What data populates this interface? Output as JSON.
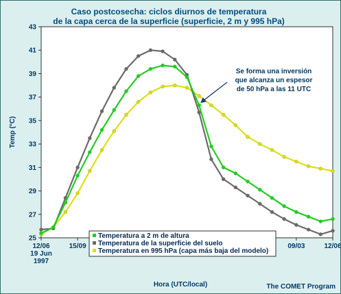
{
  "chart_data": {
    "type": "line",
    "title": "Caso postcosecha: ciclos diurnos de temperatura",
    "subtitle": "de la capa cerca de la superficie (superficie, 2 m y 995 hPa)",
    "xlabel": "Hora (UTC/local)",
    "ylabel": "Temp (°C)",
    "credit": "The COMET Program",
    "ylim": [
      25,
      43
    ],
    "yticks": [
      "25",
      "27",
      "29",
      "31",
      "33",
      "35",
      "37",
      "39",
      "41",
      "43"
    ],
    "xlim": [
      0,
      24
    ],
    "xticks": [
      {
        "x": 0,
        "label": "12/06",
        "sub1": "19 Jun",
        "sub2": "1997"
      },
      {
        "x": 3,
        "label": "15/09",
        "sub1": "",
        "sub2": ""
      },
      {
        "x": 6,
        "label": "18/12",
        "sub1": "",
        "sub2": ""
      },
      {
        "x": 9,
        "label": "21/15",
        "sub1": "",
        "sub2": ""
      },
      {
        "x": 12,
        "label": "00/18",
        "sub1": "20 Jun",
        "sub2": ""
      },
      {
        "x": 15,
        "label": "03/21",
        "sub1": "",
        "sub2": ""
      },
      {
        "x": 18,
        "label": "06/00",
        "sub1": "",
        "sub2": ""
      },
      {
        "x": 21,
        "label": "09/03",
        "sub1": "",
        "sub2": ""
      },
      {
        "x": 24,
        "label": "12/06",
        "sub1": "",
        "sub2": ""
      }
    ],
    "x": [
      0,
      1,
      2,
      3,
      4,
      5,
      6,
      7,
      8,
      9,
      10,
      11,
      12,
      13,
      14,
      15,
      16,
      17,
      18,
      19,
      20,
      21,
      22,
      23,
      24
    ],
    "series": [
      {
        "name": "Temperatura a 2 m de altura",
        "color": "#22cc22",
        "values": [
          25.4,
          25.9,
          28.0,
          30.3,
          32.3,
          34.2,
          35.9,
          37.5,
          38.8,
          39.4,
          39.7,
          39.6,
          38.7,
          36.3,
          32.8,
          31.0,
          30.5,
          29.8,
          29.1,
          28.4,
          27.7,
          27.2,
          26.8,
          26.4,
          26.6
        ]
      },
      {
        "name": "Temperatura de la superficie del suelo",
        "color": "#6a6a6a",
        "values": [
          25.7,
          25.8,
          28.4,
          31.0,
          33.5,
          35.8,
          37.8,
          39.4,
          40.5,
          41.0,
          40.9,
          40.2,
          38.9,
          35.7,
          31.7,
          30.0,
          29.3,
          28.6,
          27.9,
          27.2,
          26.6,
          26.1,
          25.7,
          25.3,
          25.6
        ]
      },
      {
        "name": "Temperatura en 995 hPa (capa más baja del modelo)",
        "color": "#dede1a",
        "values": [
          25.3,
          25.9,
          27.2,
          28.8,
          30.7,
          32.5,
          34.1,
          35.5,
          36.6,
          37.4,
          37.9,
          38.0,
          37.8,
          37.1,
          36.3,
          35.5,
          34.6,
          33.6,
          33.0,
          32.5,
          31.9,
          31.5,
          31.1,
          30.9,
          30.7
        ]
      }
    ],
    "legend_position": "bottom-left",
    "annotation": {
      "lines": [
        "Se forma una inversión",
        "que alcanza un espesor",
        "de 50 hPa a las 11 UTC"
      ],
      "points_to_x": 13.1,
      "points_to_y": 36.5
    },
    "grid": false
  }
}
